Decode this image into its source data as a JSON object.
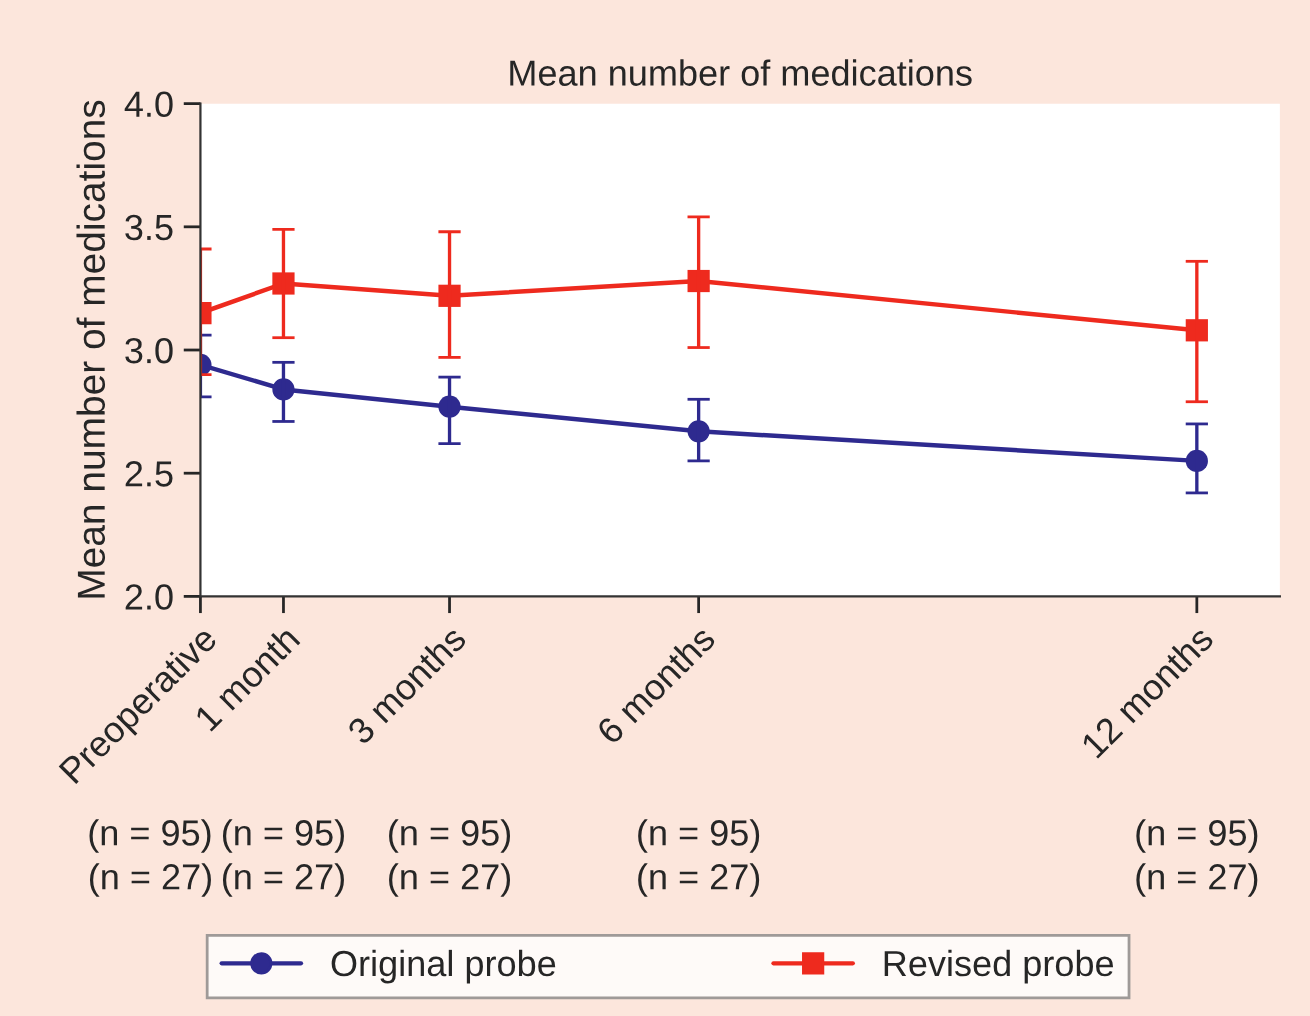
{
  "chart_data": {
    "type": "line",
    "title": "Mean number of medications",
    "ylabel": "Mean number of medications",
    "x": [
      0,
      1,
      3,
      6,
      12
    ],
    "xlim": [
      0,
      13
    ],
    "xticks": [
      {
        "value": 0,
        "label": "Preoperative"
      },
      {
        "value": 1,
        "label": "1 month"
      },
      {
        "value": 3,
        "label": "3 months"
      },
      {
        "value": 6,
        "label": "6 months"
      },
      {
        "value": 12,
        "label": "12 months"
      }
    ],
    "ylim": [
      2,
      4
    ],
    "yticks": [
      {
        "value": 2,
        "label": "2.0"
      },
      {
        "value": 2.5,
        "label": "2.5"
      },
      {
        "value": 3,
        "label": "3.0"
      },
      {
        "value": 3.5,
        "label": "3.5"
      },
      {
        "value": 4,
        "label": "4.0"
      }
    ],
    "series": [
      {
        "name": "Original probe",
        "color": "#2e2a8f",
        "marker": "circle",
        "values": [
          2.94,
          2.84,
          2.77,
          2.67,
          2.55
        ],
        "errors": [
          [
            2.81,
            3.06
          ],
          [
            2.71,
            2.95
          ],
          [
            2.62,
            2.89
          ],
          [
            2.55,
            2.8
          ],
          [
            2.42,
            2.7
          ]
        ]
      },
      {
        "name": "Revised probe",
        "color": "#ee2a1e",
        "marker": "square",
        "values": [
          3.15,
          3.27,
          3.22,
          3.28,
          3.08
        ],
        "errors": [
          [
            2.9,
            3.41
          ],
          [
            3.05,
            3.49
          ],
          [
            2.97,
            3.48
          ],
          [
            3.01,
            3.54
          ],
          [
            2.79,
            3.36
          ]
        ]
      }
    ],
    "annotations": [
      "(n = 95)",
      "(n = 95)",
      "(n = 95)",
      "(n = 95)",
      "(n = 95)",
      "(n = 27)",
      "(n = 27)",
      "(n = 27)",
      "(n = 27)",
      "(n = 27)"
    ],
    "grid": false,
    "legend": "bottom",
    "line_style": "solid"
  }
}
